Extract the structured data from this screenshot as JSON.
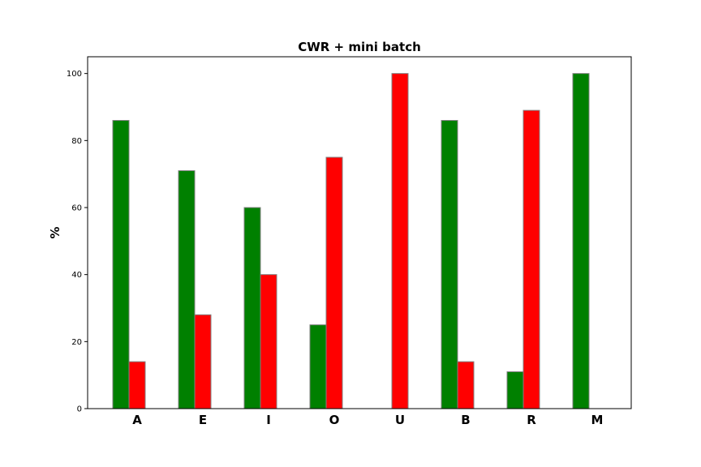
{
  "chart_data": {
    "type": "bar",
    "title": "CWR + mini batch",
    "xlabel": "",
    "ylabel": "%",
    "categories": [
      "A",
      "E",
      "I",
      "O",
      "U",
      "B",
      "R",
      "M"
    ],
    "series": [
      {
        "values": [
          86,
          71,
          60,
          25,
          0,
          86,
          11,
          100
        ],
        "color": "#008000"
      },
      {
        "values": [
          14,
          28,
          40,
          75,
          100,
          14,
          89,
          0
        ],
        "color": "#ff0000"
      }
    ],
    "ylim": [
      0,
      105
    ],
    "yticks": [
      "0",
      "20",
      "40",
      "60",
      "80",
      "100"
    ],
    "grid": false,
    "legend": "none",
    "bar_edge_color": "#808080"
  }
}
